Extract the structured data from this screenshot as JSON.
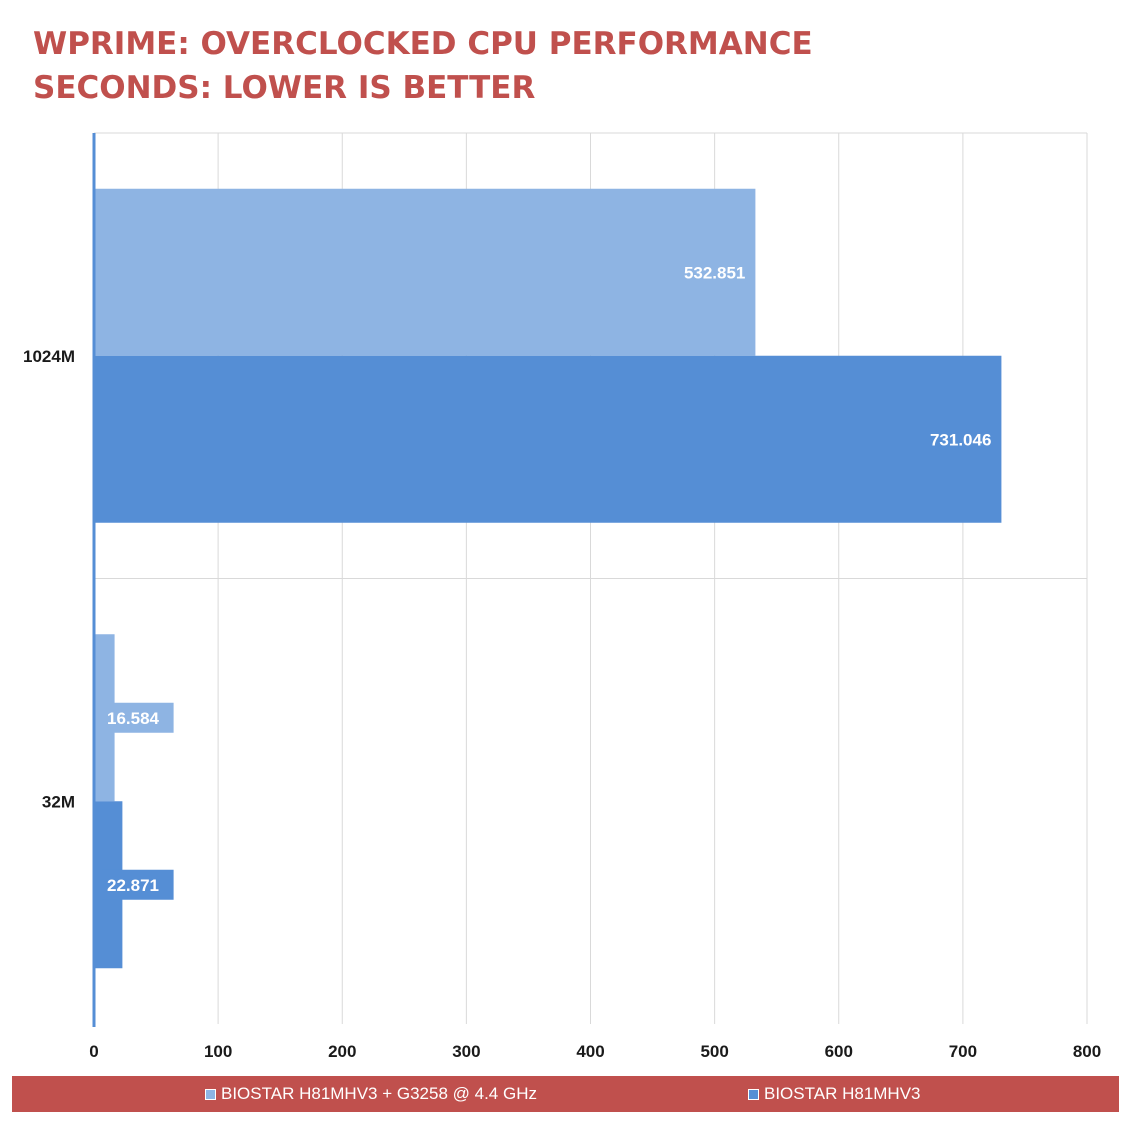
{
  "chart_data": {
    "type": "bar",
    "orientation": "horizontal",
    "title": "WPRIME: OVERCLOCKED CPU PERFORMANCE",
    "subtitle": "SECONDS: LOWER IS BETTER",
    "categories": [
      "1024M",
      "32M"
    ],
    "series": [
      {
        "name": "BIOSTAR H81MHV3 + G3258 @ 4.4 GHz",
        "values": [
          532.851,
          16.584
        ],
        "labels": [
          "532.851",
          "16.584"
        ],
        "color": "#8eb4e3"
      },
      {
        "name": "BIOSTAR H81MHV3",
        "values": [
          731.046,
          22.871
        ],
        "labels": [
          "731.046",
          "22.871"
        ],
        "color": "#558ed5"
      }
    ],
    "xlim": [
      0,
      800
    ],
    "xticks": [
      "0",
      "100",
      "200",
      "300",
      "400",
      "500",
      "600",
      "700",
      "800"
    ],
    "grid": true,
    "legend": "bottom",
    "colors": {
      "title": "#c0504d",
      "legend_background": "#c0504d",
      "grid": "#d9d9d9",
      "axis": "#558ed5"
    }
  }
}
